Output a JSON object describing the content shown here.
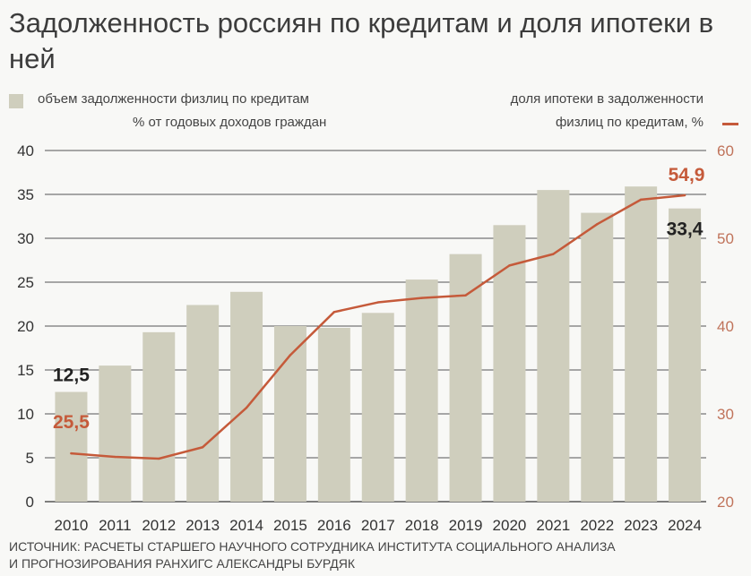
{
  "title": "Задолженность россиян по кредитам и доля ипотеки в ней",
  "legend": {
    "bars_line1": "объем задолженности физлиц по кредитам",
    "bars_line2": "% от годовых доходов граждан",
    "line_line1": "доля ипотеки в задолженности",
    "line_line2": "физлиц по кредитам, %"
  },
  "source": {
    "line1": "ИСТОЧНИК: РАСЧЕТЫ СТАРШЕГО НАУЧНОГО СОТРУДНИКА ИНСТИТУТА СОЦИАЛЬНОГО АНАЛИЗА",
    "line2": "И ПРОГНОЗИРОВАНИЯ РАНХИГС АЛЕКСАНДРЫ БУРДЯК"
  },
  "colors": {
    "bar": "#cfcebd",
    "line": "#c55a3a",
    "grid": "#555555",
    "left_axis_text": "#333333",
    "right_axis_text": "#c0735a"
  },
  "chart_data": {
    "type": "bar+line",
    "categories": [
      "2010",
      "2011",
      "2012",
      "2013",
      "2014",
      "2015",
      "2016",
      "2017",
      "2018",
      "2019",
      "2020",
      "2021",
      "2022",
      "2023",
      "2024"
    ],
    "series": [
      {
        "name": "объем задолженности физлиц по кредитам, % от годовых доходов граждан",
        "type": "bar",
        "axis": "left",
        "values": [
          12.5,
          15.5,
          19.3,
          22.4,
          23.9,
          20.0,
          19.8,
          21.5,
          25.3,
          28.2,
          31.5,
          35.5,
          32.9,
          35.9,
          33.4
        ]
      },
      {
        "name": "доля ипотеки в задолженности физлиц по кредитам, %",
        "type": "line",
        "axis": "right",
        "values": [
          25.5,
          25.1,
          24.9,
          26.2,
          30.7,
          36.7,
          41.6,
          42.7,
          43.2,
          43.5,
          46.9,
          48.2,
          51.6,
          54.4,
          54.9
        ]
      }
    ],
    "left_axis": {
      "ylim": [
        0,
        40
      ],
      "ticks": [
        "0",
        "5",
        "10",
        "15",
        "20",
        "25",
        "30",
        "35",
        "40"
      ]
    },
    "right_axis": {
      "ylim": [
        20,
        60
      ],
      "ticks": [
        "20",
        "30",
        "40",
        "50",
        "60"
      ]
    },
    "annotations": [
      {
        "series": 0,
        "index": 0,
        "text": "12,5"
      },
      {
        "series": 0,
        "index": 14,
        "text": "33,4"
      },
      {
        "series": 1,
        "index": 0,
        "text": "25,5"
      },
      {
        "series": 1,
        "index": 14,
        "text": "54,9"
      }
    ],
    "grid": true
  }
}
